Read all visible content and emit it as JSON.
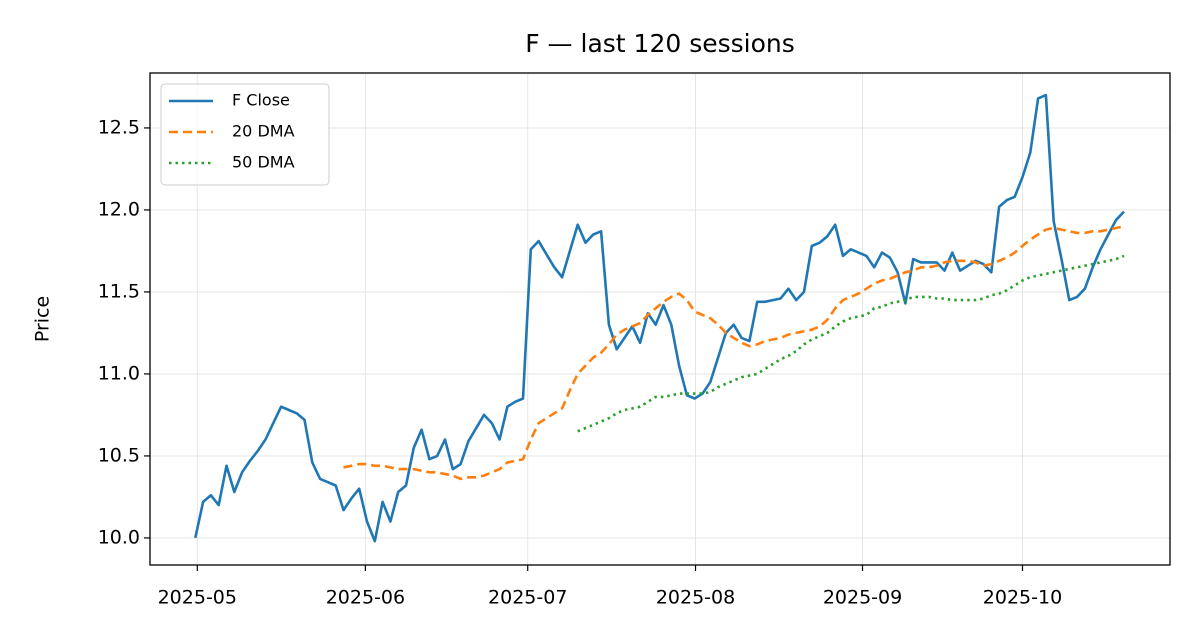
{
  "chart_data": {
    "type": "line",
    "title": "F — last 120 sessions",
    "ylabel": "Price",
    "xlim": [
      -5.8,
      124.9
    ],
    "xticks": [
      {
        "value": 0.26,
        "label": "2025-05"
      },
      {
        "value": 21.8,
        "label": "2025-06"
      },
      {
        "value": 42.6,
        "label": "2025-07"
      },
      {
        "value": 64.1,
        "label": "2025-08"
      },
      {
        "value": 85.5,
        "label": "2025-09"
      },
      {
        "value": 106.0,
        "label": "2025-10"
      }
    ],
    "ylim": [
      9.835,
      12.835
    ],
    "yticks": [
      {
        "value": 10,
        "label": "10.0"
      },
      10.5,
      {
        "value": 11,
        "label": "11.0"
      },
      11.5,
      {
        "value": 12,
        "label": "12.0"
      },
      12.5
    ],
    "grid": true,
    "legend": "upper left",
    "series": [
      {
        "name": "F Close",
        "color": "#1f77b4",
        "linestyle": "solid",
        "values": [
          10.0,
          10.22,
          10.26,
          10.2,
          10.44,
          10.28,
          10.4,
          10.47,
          10.53,
          10.6,
          10.7,
          10.8,
          10.78,
          10.76,
          10.72,
          10.46,
          10.36,
          10.34,
          10.32,
          10.17,
          10.24,
          10.3,
          10.1,
          9.98,
          10.22,
          10.1,
          10.28,
          10.32,
          10.55,
          10.66,
          10.48,
          10.5,
          10.6,
          10.42,
          10.45,
          10.59,
          10.67,
          10.75,
          10.7,
          10.6,
          10.8,
          10.83,
          10.85,
          11.76,
          11.81,
          11.73,
          11.65,
          11.59,
          11.75,
          11.91,
          11.8,
          11.85,
          11.87,
          11.3,
          11.15,
          11.22,
          11.29,
          11.19,
          11.37,
          11.3,
          11.42,
          11.3,
          11.05,
          10.87,
          10.85,
          10.88,
          10.95,
          11.1,
          11.25,
          11.3,
          11.22,
          11.2,
          11.44,
          11.44,
          11.45,
          11.46,
          11.52,
          11.45,
          11.5,
          11.78,
          11.8,
          11.84,
          11.91,
          11.72,
          11.76,
          11.74,
          11.72,
          11.65,
          11.74,
          11.71,
          11.62,
          11.43,
          11.7,
          11.68,
          11.68,
          11.68,
          11.63,
          11.74,
          11.63,
          11.66,
          11.69,
          11.67,
          11.62,
          12.02,
          12.06,
          12.08,
          12.2,
          12.35,
          12.68,
          12.7,
          11.93,
          11.7,
          11.45,
          11.47,
          11.52,
          11.65,
          11.76,
          11.85,
          11.94,
          11.99
        ]
      },
      {
        "name": "20 DMA",
        "color": "#ff7f0e",
        "linestyle": "dashed",
        "values": [
          null,
          null,
          null,
          null,
          null,
          null,
          null,
          null,
          null,
          null,
          null,
          null,
          null,
          null,
          null,
          null,
          null,
          null,
          null,
          10.43,
          10.44,
          10.45,
          10.45,
          10.44,
          10.44,
          10.43,
          10.42,
          10.42,
          10.42,
          10.41,
          10.4,
          10.4,
          10.39,
          10.38,
          10.36,
          10.37,
          10.37,
          10.38,
          10.4,
          10.42,
          10.46,
          10.47,
          10.48,
          10.6,
          10.7,
          10.73,
          10.76,
          10.79,
          10.9,
          11.0,
          11.05,
          11.1,
          11.13,
          11.18,
          11.24,
          11.27,
          11.29,
          11.31,
          11.36,
          11.4,
          11.44,
          11.47,
          11.49,
          11.45,
          11.38,
          11.36,
          11.34,
          11.3,
          11.25,
          11.22,
          11.19,
          11.17,
          11.18,
          11.2,
          11.21,
          11.22,
          11.24,
          11.25,
          11.26,
          11.27,
          11.29,
          11.33,
          11.4,
          11.45,
          11.47,
          11.49,
          11.52,
          11.55,
          11.57,
          11.58,
          11.6,
          11.62,
          11.63,
          11.65,
          11.65,
          11.66,
          11.68,
          11.69,
          11.69,
          11.69,
          11.68,
          11.66,
          11.67,
          11.69,
          11.71,
          11.74,
          11.78,
          11.82,
          11.85,
          11.88,
          11.89,
          11.88,
          11.87,
          11.86,
          11.86,
          11.87,
          11.87,
          11.88,
          11.89,
          11.9
        ]
      },
      {
        "name": "50 DMA",
        "color": "#2ca02c",
        "linestyle": "dotted",
        "values": [
          null,
          null,
          null,
          null,
          null,
          null,
          null,
          null,
          null,
          null,
          null,
          null,
          null,
          null,
          null,
          null,
          null,
          null,
          null,
          null,
          null,
          null,
          null,
          null,
          null,
          null,
          null,
          null,
          null,
          null,
          null,
          null,
          null,
          null,
          null,
          null,
          null,
          null,
          null,
          null,
          null,
          null,
          null,
          null,
          null,
          null,
          null,
          null,
          null,
          10.65,
          10.67,
          10.69,
          10.71,
          10.73,
          10.76,
          10.78,
          10.79,
          10.8,
          10.83,
          10.86,
          10.86,
          10.87,
          10.88,
          10.88,
          10.88,
          10.88,
          10.89,
          10.92,
          10.94,
          10.96,
          10.98,
          10.99,
          11.0,
          11.03,
          11.06,
          11.09,
          11.11,
          11.14,
          11.18,
          11.21,
          11.23,
          11.25,
          11.29,
          11.32,
          11.34,
          11.35,
          11.36,
          11.4,
          11.41,
          11.43,
          11.44,
          11.45,
          11.47,
          11.47,
          11.47,
          11.46,
          11.46,
          11.45,
          11.45,
          11.45,
          11.45,
          11.46,
          11.48,
          11.49,
          11.51,
          11.54,
          11.57,
          11.59,
          11.6,
          11.61,
          11.62,
          11.63,
          11.64,
          11.65,
          11.66,
          11.67,
          11.68,
          11.69,
          11.7,
          11.72
        ]
      }
    ]
  }
}
